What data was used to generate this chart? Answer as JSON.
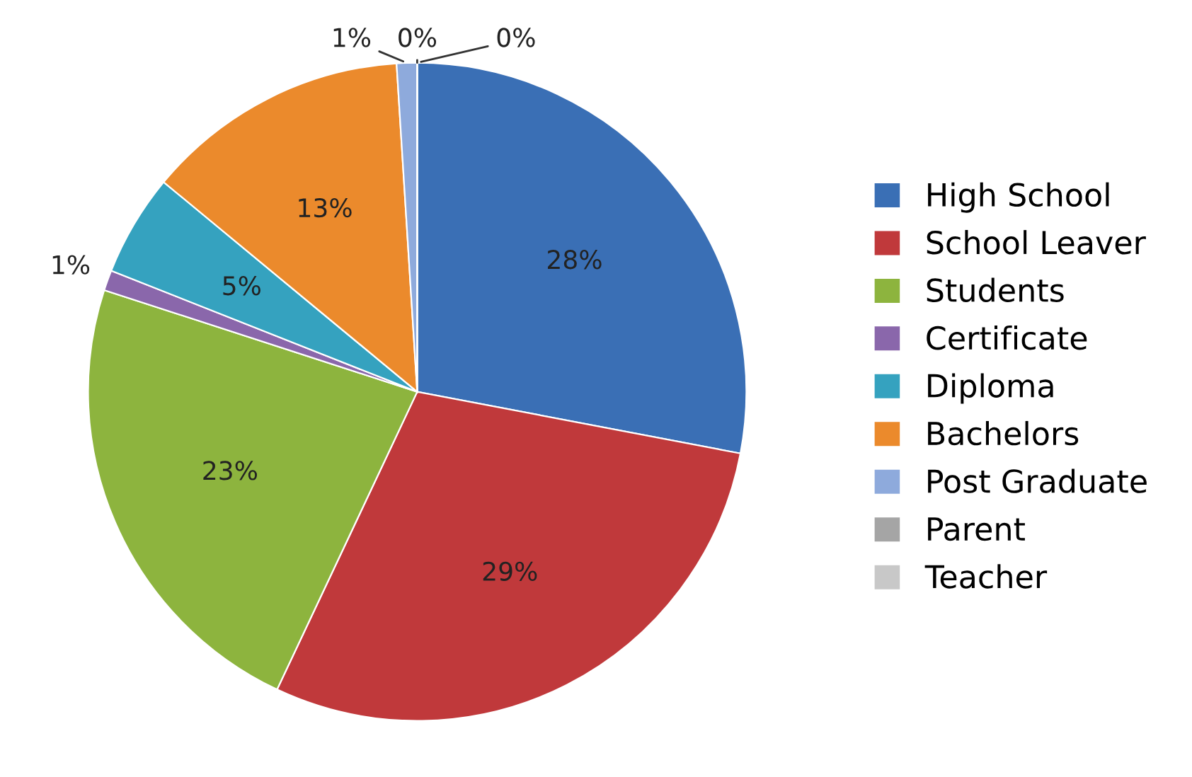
{
  "chart_data": {
    "type": "pie",
    "categories": [
      "High School",
      "School Leaver",
      "Students",
      "Certificate",
      "Diploma",
      "Bachelors",
      "Post Graduate",
      "Parent",
      "Teacher"
    ],
    "values": [
      28,
      29,
      23,
      1,
      5,
      13,
      1,
      0,
      0
    ],
    "colors": [
      "#3a6fb5",
      "#c0393b",
      "#8db43e",
      "#8a67ab",
      "#35a2bf",
      "#eb8a2c",
      "#8eaadc",
      "#a5a5a5",
      "#c8c8c8"
    ],
    "value_labels": [
      "28%",
      "29%",
      "23%",
      "1%",
      "5%",
      "13%",
      "1%",
      "0%",
      "0%"
    ],
    "legend": "right"
  }
}
